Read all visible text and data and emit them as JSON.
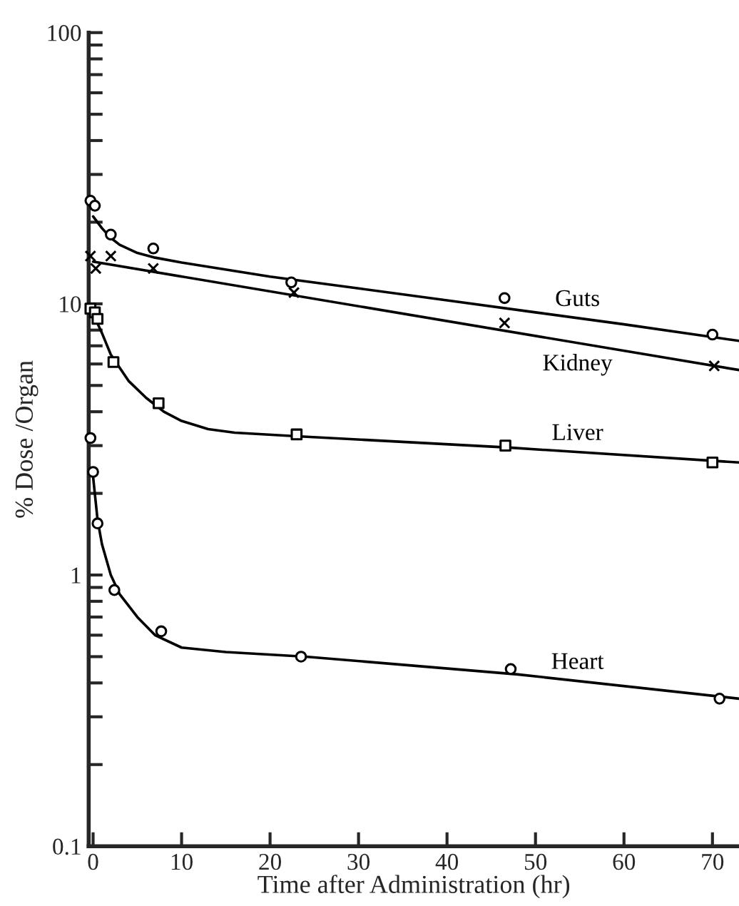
{
  "chart_data": {
    "type": "scatter",
    "xlabel": "Time after Administration (hr)",
    "ylabel": "% Dose /Organ",
    "log": "y",
    "xlim": [
      -0.5,
      73
    ],
    "xticks": [
      0,
      10,
      20,
      30,
      40,
      50,
      60,
      70
    ],
    "ylim": [
      0.1,
      100
    ],
    "yticks": [
      0.1,
      {
        "value": 0.2,
        "label": null
      },
      {
        "value": 0.3,
        "label": null
      },
      {
        "value": 0.4,
        "label": null
      },
      {
        "value": 0.5,
        "label": null
      },
      {
        "value": 0.6,
        "label": null
      },
      {
        "value": 0.7,
        "label": null
      },
      {
        "value": 0.8,
        "label": null
      },
      {
        "value": 0.9,
        "label": null
      },
      1,
      {
        "value": 2,
        "label": null
      },
      {
        "value": 3,
        "label": null
      },
      {
        "value": 4,
        "label": null
      },
      {
        "value": 5,
        "label": null
      },
      {
        "value": 6,
        "label": null
      },
      {
        "value": 7,
        "label": null
      },
      {
        "value": 8,
        "label": null
      },
      {
        "value": 9,
        "label": null
      },
      10,
      {
        "value": 20,
        "label": null
      },
      {
        "value": 30,
        "label": null
      },
      {
        "value": 40,
        "label": null
      },
      {
        "value": 50,
        "label": null
      },
      {
        "value": 60,
        "label": null
      },
      {
        "value": 70,
        "label": null
      },
      {
        "value": 80,
        "label": null
      },
      {
        "value": 90,
        "label": null
      },
      100
    ],
    "grid": false,
    "legend": false,
    "series": [
      {
        "type": "scatter",
        "marker": "circle",
        "color": "#000000",
        "x": [
          -0.3,
          0.2,
          2,
          6.8,
          22.4,
          46.5,
          70
        ],
        "values": [
          24,
          23,
          18,
          16,
          12,
          10.5,
          7.7
        ]
      },
      {
        "type": "scatter",
        "marker": "cross",
        "color": "#000000",
        "x": [
          -0.3,
          0.3,
          2,
          6.8,
          22.7,
          46.5,
          70.2
        ],
        "values": [
          15,
          13.5,
          15,
          13.5,
          11,
          8.5,
          5.9
        ]
      },
      {
        "type": "scatter",
        "marker": "square",
        "color": "#000000",
        "x": [
          -0.3,
          0.2,
          0.5,
          2.3,
          7.4,
          23,
          46.6,
          70
        ],
        "values": [
          9.6,
          9.3,
          8.8,
          6.1,
          4.3,
          3.3,
          3,
          2.6
        ]
      },
      {
        "type": "scatter",
        "marker": "circle",
        "color": "#000000",
        "x": [
          -0.3,
          0,
          0.5,
          2.4,
          7.7,
          23.5,
          47.2,
          70.8
        ],
        "values": [
          3.2,
          2.4,
          1.55,
          0.88,
          0.62,
          0.5,
          0.45,
          0.35
        ]
      },
      {
        "name": "Guts",
        "type": "line",
        "marker": "none",
        "color": "#000000",
        "x": [
          0,
          1,
          2,
          3,
          5,
          7,
          10,
          20,
          30,
          40,
          50,
          60,
          73
        ],
        "values": [
          21,
          19,
          17.5,
          16.5,
          15.4,
          14.8,
          14.2,
          12.6,
          11.4,
          10.3,
          9.3,
          8.4,
          7.3
        ]
      },
      {
        "name": "Kidney",
        "type": "line",
        "marker": "none",
        "color": "#000000",
        "x": [
          0,
          73
        ],
        "values": [
          14.3,
          5.7
        ]
      },
      {
        "name": "Liver",
        "type": "line",
        "marker": "none",
        "color": "#000000",
        "x": [
          0,
          1,
          2,
          4,
          6,
          8,
          10,
          13,
          16,
          23,
          47,
          73
        ],
        "values": [
          9.2,
          7.8,
          6.5,
          5.2,
          4.5,
          4,
          3.7,
          3.45,
          3.35,
          3.25,
          2.95,
          2.6
        ]
      },
      {
        "name": "Heart",
        "type": "line",
        "marker": "none",
        "color": "#000000",
        "x": [
          0,
          0.5,
          1,
          2,
          3,
          5,
          7,
          10,
          15,
          24,
          48,
          73
        ],
        "values": [
          2.3,
          1.6,
          1.3,
          1,
          0.85,
          0.7,
          0.6,
          0.54,
          0.52,
          0.5,
          0.43,
          0.35
        ]
      }
    ]
  }
}
